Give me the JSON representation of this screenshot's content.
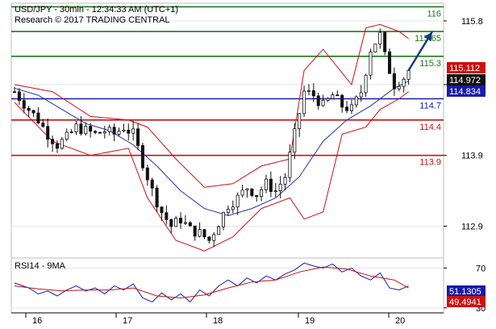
{
  "header": {
    "title": "USD/JPY - 30min - 12:34:33 AM (UTC+1)",
    "subtitle": "Research © 2017 TRADING CENTRAL"
  },
  "chart_data": [
    {
      "type": "candlestick",
      "ylim": [
        112.45,
        116.05
      ],
      "y_ticks": [
        "115.8",
        "114.9",
        "113.9",
        "112.9"
      ],
      "x_ticks": [
        "16",
        "17",
        "18",
        "19",
        "20"
      ],
      "levels": [
        {
          "value": 116.0,
          "label": "116",
          "color": "#1a7a1a",
          "role": "resistance"
        },
        {
          "value": 115.65,
          "label": "115.65",
          "color": "#1a7a1a",
          "role": "resistance"
        },
        {
          "value": 115.3,
          "label": "115.3",
          "color": "#1a7a1a",
          "role": "resistance"
        },
        {
          "value": 114.7,
          "label": "114.7",
          "color": "#1a1aa8",
          "role": "pivot"
        },
        {
          "value": 114.4,
          "label": "114.4",
          "color": "#cc1111",
          "role": "support"
        },
        {
          "value": 113.9,
          "label": "113.9",
          "color": "#cc1111",
          "role": "support"
        }
      ],
      "price_badges": [
        {
          "label": "115.112",
          "value": 115.112,
          "color": "#cc1111"
        },
        {
          "label": "114.972",
          "value": 114.972,
          "color": "#111111"
        },
        {
          "label": "114.834",
          "value": 114.834,
          "color": "#1a1aa8"
        }
      ],
      "close_path": [
        [
          0,
          114.8
        ],
        [
          3,
          114.55
        ],
        [
          5,
          114.4
        ],
        [
          7,
          114.2
        ],
        [
          9,
          114.05
        ],
        [
          11,
          114.15
        ],
        [
          13,
          114.3
        ],
        [
          15,
          114.25
        ],
        [
          17,
          114.2
        ],
        [
          19,
          114.25
        ],
        [
          21,
          114.2
        ],
        [
          23,
          114.3
        ],
        [
          25,
          114.2
        ],
        [
          27,
          113.8
        ],
        [
          29,
          113.4
        ],
        [
          31,
          113.1
        ],
        [
          33,
          112.9
        ],
        [
          35,
          113.0
        ],
        [
          37,
          112.85
        ],
        [
          39,
          112.8
        ],
        [
          41,
          112.7
        ],
        [
          43,
          112.95
        ],
        [
          45,
          113.2
        ],
        [
          47,
          113.3
        ],
        [
          49,
          113.45
        ],
        [
          51,
          113.35
        ],
        [
          53,
          113.5
        ],
        [
          55,
          113.4
        ],
        [
          57,
          113.6
        ],
        [
          59,
          114.2
        ],
        [
          61,
          114.8
        ],
        [
          63,
          114.75
        ],
        [
          65,
          114.6
        ],
        [
          67,
          114.75
        ],
        [
          69,
          114.6
        ],
        [
          71,
          114.55
        ],
        [
          73,
          114.8
        ],
        [
          75,
          115.4
        ],
        [
          77,
          115.6
        ],
        [
          78,
          115.3
        ],
        [
          80,
          114.9
        ],
        [
          82,
          115.0
        ],
        [
          83,
          115.1
        ]
      ],
      "moving_average": [
        [
          0,
          114.85
        ],
        [
          5,
          114.75
        ],
        [
          10,
          114.55
        ],
        [
          15,
          114.35
        ],
        [
          20,
          114.25
        ],
        [
          25,
          114.05
        ],
        [
          30,
          113.75
        ],
        [
          35,
          113.4
        ],
        [
          40,
          113.15
        ],
        [
          45,
          113.05
        ],
        [
          50,
          113.15
        ],
        [
          55,
          113.3
        ],
        [
          60,
          113.6
        ],
        [
          65,
          114.1
        ],
        [
          70,
          114.4
        ],
        [
          75,
          114.6
        ],
        [
          80,
          114.85
        ],
        [
          83,
          114.95
        ]
      ],
      "bollinger_upper": [
        [
          0,
          114.9
        ],
        [
          8,
          114.8
        ],
        [
          16,
          114.45
        ],
        [
          24,
          114.4
        ],
        [
          28,
          114.3
        ],
        [
          34,
          113.85
        ],
        [
          40,
          113.45
        ],
        [
          46,
          113.5
        ],
        [
          52,
          113.75
        ],
        [
          58,
          113.85
        ],
        [
          61,
          115.1
        ],
        [
          65,
          115.4
        ],
        [
          71,
          114.9
        ],
        [
          74,
          115.7
        ],
        [
          77,
          115.75
        ],
        [
          81,
          115.65
        ],
        [
          83,
          115.55
        ]
      ],
      "bollinger_lower": [
        [
          0,
          114.65
        ],
        [
          8,
          114.1
        ],
        [
          16,
          113.9
        ],
        [
          24,
          114.0
        ],
        [
          28,
          113.3
        ],
        [
          34,
          112.7
        ],
        [
          40,
          112.55
        ],
        [
          46,
          112.75
        ],
        [
          52,
          113.15
        ],
        [
          58,
          113.3
        ],
        [
          61,
          113.0
        ],
        [
          65,
          113.1
        ],
        [
          69,
          114.2
        ],
        [
          74,
          114.3
        ],
        [
          77,
          114.55
        ],
        [
          81,
          114.7
        ],
        [
          83,
          114.8
        ]
      ],
      "forecast_arrow": {
        "from": [
          83,
          115.1
        ],
        "to": [
          88,
          115.65
        ],
        "color": "#123a7a"
      }
    },
    {
      "type": "line",
      "title": "RSI14 - 9MA",
      "ylim": [
        25,
        80
      ],
      "y_ticks": [
        "70",
        "30"
      ],
      "badges": [
        {
          "label": "51.1305",
          "value": 51.13,
          "color": "#1a1aa8"
        },
        {
          "label": "49.4941",
          "value": 49.49,
          "color": "#cc1111"
        }
      ],
      "series": [
        {
          "color": "#1a1aa8",
          "values": [
            [
              0,
              55
            ],
            [
              3,
              50
            ],
            [
              5,
              44
            ],
            [
              7,
              47
            ],
            [
              9,
              42
            ],
            [
              11,
              48
            ],
            [
              13,
              52
            ],
            [
              15,
              47
            ],
            [
              17,
              50
            ],
            [
              19,
              44
            ],
            [
              21,
              52
            ],
            [
              23,
              48
            ],
            [
              25,
              54
            ],
            [
              27,
              40
            ],
            [
              29,
              36
            ],
            [
              31,
              45
            ],
            [
              33,
              38
            ],
            [
              35,
              44
            ],
            [
              37,
              36
            ],
            [
              39,
              48
            ],
            [
              41,
              42
            ],
            [
              43,
              52
            ],
            [
              45,
              58
            ],
            [
              47,
              52
            ],
            [
              49,
              60
            ],
            [
              51,
              55
            ],
            [
              53,
              62
            ],
            [
              55,
              58
            ],
            [
              57,
              64
            ],
            [
              59,
              68
            ],
            [
              61,
              75
            ],
            [
              63,
              72
            ],
            [
              65,
              70
            ],
            [
              67,
              74
            ],
            [
              69,
              66
            ],
            [
              71,
              70
            ],
            [
              73,
              62
            ],
            [
              75,
              58
            ],
            [
              77,
              65
            ],
            [
              79,
              50
            ],
            [
              81,
              48
            ],
            [
              83,
              52
            ]
          ]
        },
        {
          "color": "#cc1111",
          "values": [
            [
              0,
              52
            ],
            [
              5,
              49
            ],
            [
              10,
              47
            ],
            [
              15,
              48
            ],
            [
              20,
              48
            ],
            [
              25,
              50
            ],
            [
              30,
              42
            ],
            [
              35,
              40
            ],
            [
              40,
              43
            ],
            [
              45,
              50
            ],
            [
              50,
              56
            ],
            [
              55,
              58
            ],
            [
              60,
              66
            ],
            [
              65,
              71
            ],
            [
              70,
              69
            ],
            [
              75,
              62
            ],
            [
              80,
              58
            ],
            [
              83,
              50
            ]
          ]
        }
      ]
    }
  ]
}
